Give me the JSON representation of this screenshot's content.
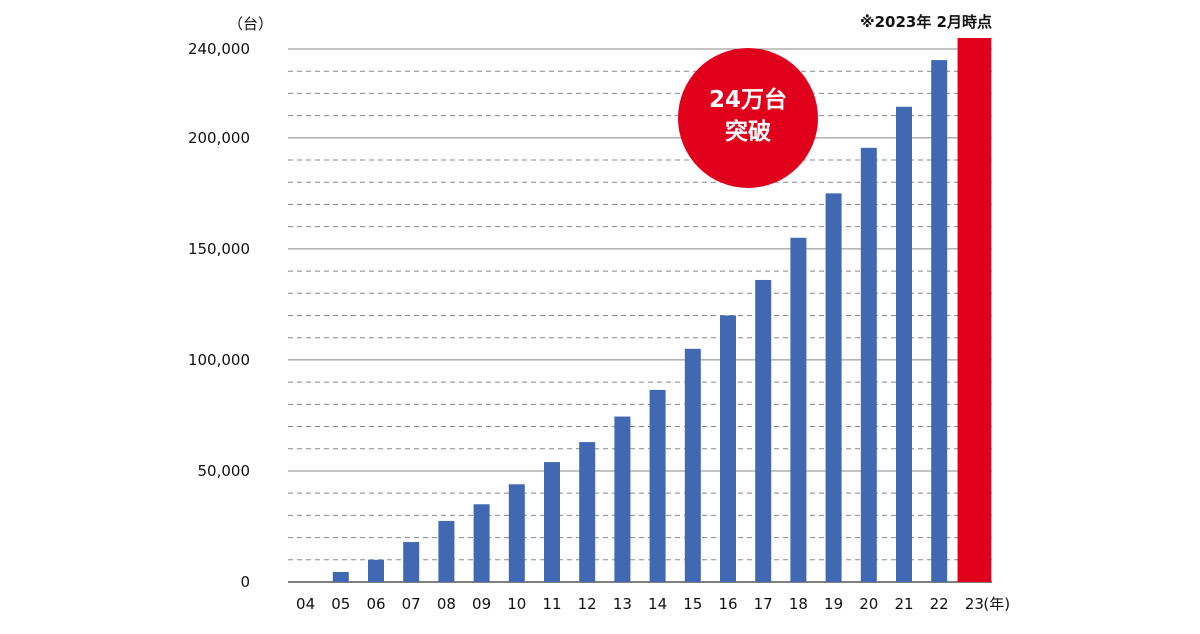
{
  "chart_data": {
    "type": "bar",
    "y_unit": "（台）",
    "x_unit": "(年)",
    "note": "※2023年 2月時点",
    "categories": [
      "04",
      "05",
      "06",
      "07",
      "08",
      "09",
      "10",
      "11",
      "12",
      "13",
      "14",
      "15",
      "16",
      "17",
      "18",
      "19",
      "20",
      "21",
      "22",
      "23"
    ],
    "values": [
      0,
      4500,
      10000,
      18000,
      27500,
      35000,
      44000,
      54000,
      63000,
      74500,
      86500,
      105000,
      120000,
      136000,
      155000,
      175000,
      195500,
      214000,
      235000,
      245000
    ],
    "highlight_index": 19,
    "ylim": [
      0,
      240000
    ],
    "yticks": [
      0,
      50000,
      100000,
      150000,
      200000,
      240000
    ],
    "ytick_labels": [
      "0",
      "50,000",
      "100,000",
      "150,000",
      "200,000",
      "240,000"
    ],
    "minor_grid_step": 10000,
    "grid": true,
    "colors": {
      "bar": "#4169b3",
      "highlight": "#e0001b",
      "badge": "#e0001b",
      "grid": "#888888"
    },
    "annotation": {
      "line1": "24万台",
      "line2": "突破"
    }
  }
}
